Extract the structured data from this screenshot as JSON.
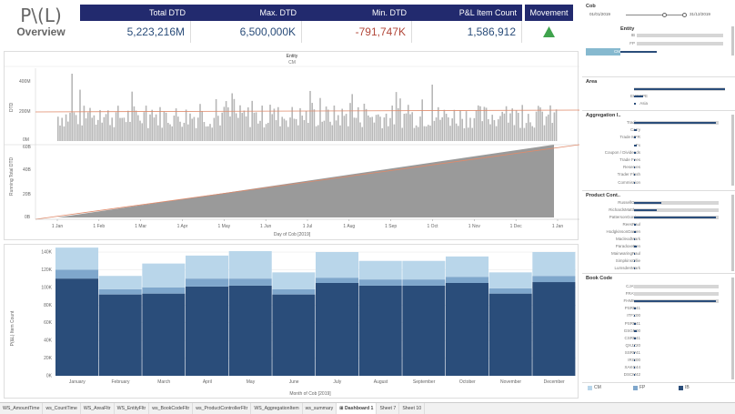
{
  "header": {
    "title": "P\\(L)",
    "subtitle": "Overview",
    "kpis": [
      {
        "label": "Total DTD",
        "value": "5,223,216M",
        "color": "#2a4d7a"
      },
      {
        "label": "Max. DTD",
        "value": "6,500,000K",
        "color": "#2a4d7a"
      },
      {
        "label": "Min. DTD",
        "value": "-791,747K",
        "color": "#b2483a"
      },
      {
        "label": "P&L Item Count",
        "value": "1,586,912",
        "color": "#2a4d7a"
      }
    ],
    "movement_label": "Movement",
    "movement_icon": "up-triangle-icon",
    "movement_color": "#3fa34d"
  },
  "top_chart": {
    "entity_label": "Entity",
    "entity_value": "CM",
    "dtd_ylabel": "DTD",
    "dtd_ticks": [
      "400M",
      "200M",
      "0M"
    ],
    "running_ylabel": "Running Total DTD",
    "running_ticks": [
      "60B",
      "40B",
      "20B",
      "0B"
    ],
    "x_ticks": [
      "1 Jan",
      "1 Feb",
      "1 Mar",
      "1 Apr",
      "1 May",
      "1 Jun",
      "1 Jul",
      "1 Aug",
      "1 Sep",
      "1 Oct",
      "1 Nov",
      "1 Dec",
      "1 Jan"
    ],
    "xlabel": "Day of Cob [2019]",
    "bar_color": "#b7b7b7",
    "ref_line_color": "#e08a6a",
    "area_color": "#9a9a9a"
  },
  "chart_data": {
    "type": "bar",
    "stacked": true,
    "categories": [
      "January",
      "February",
      "March",
      "April",
      "May",
      "June",
      "July",
      "August",
      "September",
      "October",
      "November",
      "December"
    ],
    "series": [
      {
        "name": "IB",
        "values": [
          110000,
          92000,
          93000,
          101000,
          102000,
          92000,
          105000,
          102000,
          102000,
          105000,
          93000,
          106000
        ],
        "color": "#2a4d7a"
      },
      {
        "name": "FP",
        "values": [
          10000,
          6000,
          7000,
          9000,
          8000,
          6000,
          6000,
          7000,
          7000,
          7000,
          6000,
          7000
        ],
        "color": "#7fa7cc"
      },
      {
        "name": "CM",
        "values": [
          25000,
          15000,
          27000,
          26000,
          31000,
          19000,
          29000,
          21000,
          21000,
          23000,
          18000,
          27000
        ],
        "color": "#b9d6ea"
      }
    ],
    "ylabel": "P(&L) Item Count",
    "xlabel": "Month of Cob [2019]",
    "ylim": [
      0,
      140000
    ],
    "yticks": [
      "0K",
      "20K",
      "40K",
      "60K",
      "80K",
      "100K",
      "120K",
      "140K"
    ],
    "grid": true
  },
  "filters": {
    "cob": {
      "title": "Cob",
      "start": "01/01/2019",
      "end": "31/12/2019"
    },
    "entity": {
      "title": "Entity",
      "items": [
        "IB",
        "FP",
        "CM"
      ],
      "selected": "CM"
    },
    "area": {
      "title": "Area",
      "items": [
        "USA",
        "EUROPE",
        "Asia"
      ]
    },
    "aggregation": {
      "title": "Aggregation I..",
      "items": [
        "Trading",
        "Carry",
        "Trade MFR",
        "Fx",
        "Coupon / Dividends",
        "Trade Fees",
        "Reserves",
        "Trader Flash",
        "Commission"
      ]
    },
    "product": {
      "title": "Product Cont..",
      "items": [
        "RussellGreg",
        "RichardsMatthew",
        "PattersonGordon",
        "ReesPaul",
        "HodgkinsonDarren",
        "MacleodMark",
        "ParadoxeBen",
        "MainwaringPaul",
        "SimpkinsOllie",
        "LumsdenMark"
      ]
    },
    "book": {
      "title": "Book Code",
      "items": [
        "CJAT00",
        "FRAT20",
        "FHMM80",
        "PSRP41",
        "ITFX00",
        "PSRP41",
        "GSGR00",
        "CSRP41",
        "QXJZ20",
        "SSRP41",
        "IRIS00",
        "XAKG44",
        "DSCM42"
      ]
    },
    "legend": [
      "CM",
      "FP",
      "IB"
    ]
  },
  "tabs": [
    "WS_AmountTime",
    "ws_CountTime",
    "WS_AreaFltr",
    "WS_EntityFltr",
    "ws_BookCodeFltr",
    "ws_ProductControllerFltr",
    "WS_AggregationItem",
    "ws_summary",
    "Dashboard 1",
    "Sheet 7",
    "Sheet 10"
  ],
  "active_tab": "Dashboard 1"
}
